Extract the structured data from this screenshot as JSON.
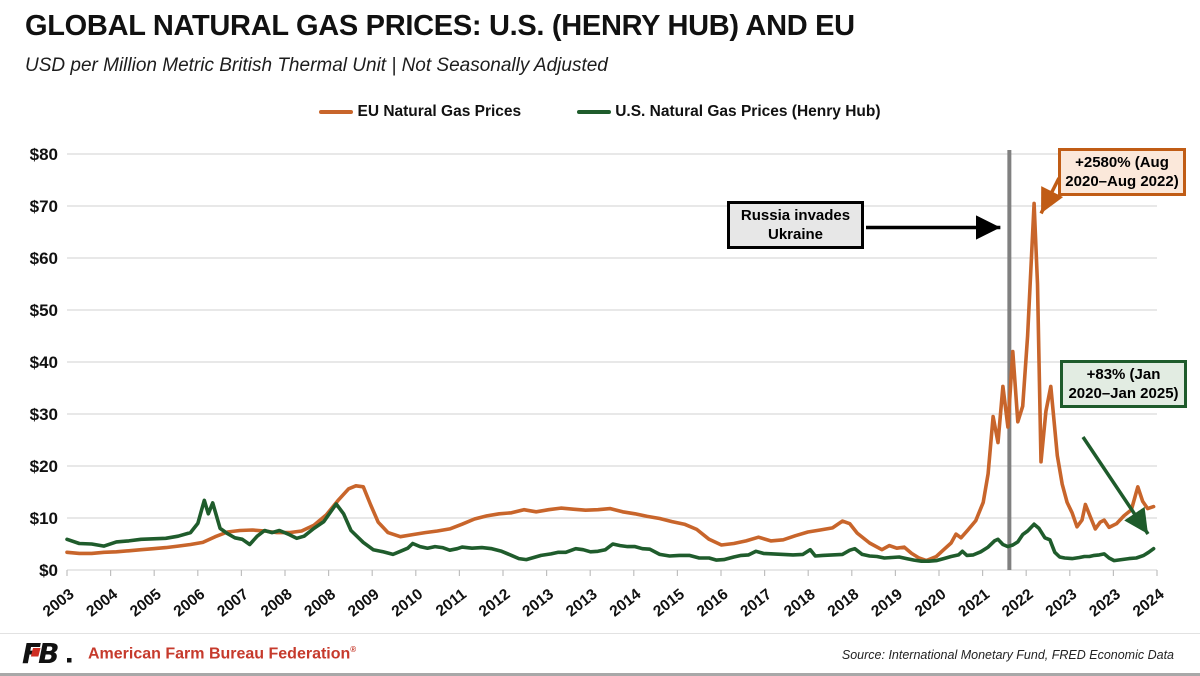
{
  "chart_data": {
    "type": "line",
    "title": "GLOBAL NATURAL GAS PRICES: U.S. (HENRY HUB) AND EU",
    "subtitle": "USD per Million Metric British Thermal Unit | Not Seasonally Adjusted",
    "ylabel": "",
    "xlabel": "",
    "ylim": [
      0,
      80
    ],
    "grid": true,
    "legend_position": "top",
    "y_axis": {
      "tick_labels": [
        "$0",
        "$10",
        "$20",
        "$30",
        "$40",
        "$50",
        "$60",
        "$70",
        "$80"
      ],
      "min": 0,
      "max": 80,
      "step": 10
    },
    "x_axis": {
      "tick_labels": [
        "2003",
        "2004",
        "2005",
        "2006",
        "2007",
        "2008",
        "2008",
        "2009",
        "2010",
        "2011",
        "2012",
        "2013",
        "2013",
        "2014",
        "2015",
        "2016",
        "2017",
        "2018",
        "2018",
        "2019",
        "2020",
        "2021",
        "2022",
        "2023",
        "2023",
        "2024"
      ]
    },
    "event_line": {
      "year": 2022.08,
      "color": "#808080",
      "meaning": "Russia invades Ukraine"
    },
    "series": [
      {
        "name": "EU Natural Gas Prices",
        "color": "#C8652B",
        "points": [
          [
            2003.0,
            3.4
          ],
          [
            2003.25,
            3.2
          ],
          [
            2003.5,
            3.2
          ],
          [
            2003.75,
            3.4
          ],
          [
            2004.0,
            3.5
          ],
          [
            2004.25,
            3.7
          ],
          [
            2004.5,
            3.9
          ],
          [
            2004.75,
            4.1
          ],
          [
            2005.0,
            4.3
          ],
          [
            2005.25,
            4.6
          ],
          [
            2005.5,
            4.9
          ],
          [
            2005.75,
            5.3
          ],
          [
            2006.0,
            6.4
          ],
          [
            2006.25,
            7.3
          ],
          [
            2006.5,
            7.6
          ],
          [
            2006.75,
            7.7
          ],
          [
            2007.0,
            7.5
          ],
          [
            2007.25,
            7.2
          ],
          [
            2007.5,
            7.2
          ],
          [
            2007.75,
            7.5
          ],
          [
            2008.0,
            8.6
          ],
          [
            2008.25,
            10.6
          ],
          [
            2008.5,
            13.5
          ],
          [
            2008.7,
            15.6
          ],
          [
            2008.85,
            16.2
          ],
          [
            2009.0,
            16.0
          ],
          [
            2009.15,
            12.5
          ],
          [
            2009.3,
            9.2
          ],
          [
            2009.5,
            7.2
          ],
          [
            2009.75,
            6.4
          ],
          [
            2010.0,
            6.8
          ],
          [
            2010.25,
            7.2
          ],
          [
            2010.5,
            7.5
          ],
          [
            2010.75,
            7.9
          ],
          [
            2011.0,
            8.8
          ],
          [
            2011.25,
            9.8
          ],
          [
            2011.5,
            10.4
          ],
          [
            2011.75,
            10.8
          ],
          [
            2012.0,
            11.0
          ],
          [
            2012.25,
            11.6
          ],
          [
            2012.5,
            11.2
          ],
          [
            2012.75,
            11.6
          ],
          [
            2013.0,
            11.9
          ],
          [
            2013.25,
            11.7
          ],
          [
            2013.5,
            11.5
          ],
          [
            2013.75,
            11.6
          ],
          [
            2014.0,
            11.8
          ],
          [
            2014.25,
            11.2
          ],
          [
            2014.5,
            10.8
          ],
          [
            2014.75,
            10.3
          ],
          [
            2015.0,
            9.9
          ],
          [
            2015.25,
            9.3
          ],
          [
            2015.5,
            8.8
          ],
          [
            2015.75,
            7.8
          ],
          [
            2016.0,
            5.9
          ],
          [
            2016.25,
            4.8
          ],
          [
            2016.5,
            5.1
          ],
          [
            2016.75,
            5.6
          ],
          [
            2017.0,
            6.3
          ],
          [
            2017.25,
            5.6
          ],
          [
            2017.5,
            5.8
          ],
          [
            2017.75,
            6.6
          ],
          [
            2018.0,
            7.3
          ],
          [
            2018.25,
            7.7
          ],
          [
            2018.5,
            8.1
          ],
          [
            2018.7,
            9.4
          ],
          [
            2018.85,
            8.9
          ],
          [
            2019.0,
            7.1
          ],
          [
            2019.25,
            5.2
          ],
          [
            2019.5,
            3.9
          ],
          [
            2019.65,
            4.7
          ],
          [
            2019.8,
            4.2
          ],
          [
            2019.95,
            4.4
          ],
          [
            2020.1,
            3.2
          ],
          [
            2020.25,
            2.3
          ],
          [
            2020.4,
            1.8
          ],
          [
            2020.6,
            2.6
          ],
          [
            2020.75,
            3.9
          ],
          [
            2020.9,
            5.2
          ],
          [
            2021.0,
            6.9
          ],
          [
            2021.1,
            6.2
          ],
          [
            2021.25,
            7.8
          ],
          [
            2021.4,
            9.5
          ],
          [
            2021.55,
            13.0
          ],
          [
            2021.65,
            18.5
          ],
          [
            2021.75,
            29.5
          ],
          [
            2021.85,
            24.5
          ],
          [
            2021.95,
            35.3
          ],
          [
            2022.05,
            27.5
          ],
          [
            2022.15,
            42.0
          ],
          [
            2022.25,
            28.5
          ],
          [
            2022.35,
            31.5
          ],
          [
            2022.45,
            45.0
          ],
          [
            2022.58,
            70.5
          ],
          [
            2022.65,
            55.0
          ],
          [
            2022.72,
            20.8
          ],
          [
            2022.82,
            30.5
          ],
          [
            2022.92,
            35.3
          ],
          [
            2023.05,
            22.0
          ],
          [
            2023.15,
            16.5
          ],
          [
            2023.25,
            13.0
          ],
          [
            2023.35,
            11.0
          ],
          [
            2023.45,
            8.3
          ],
          [
            2023.55,
            9.6
          ],
          [
            2023.62,
            12.6
          ],
          [
            2023.72,
            10.2
          ],
          [
            2023.82,
            7.9
          ],
          [
            2023.92,
            9.2
          ],
          [
            2024.0,
            9.6
          ],
          [
            2024.1,
            8.2
          ],
          [
            2024.25,
            8.9
          ],
          [
            2024.4,
            10.4
          ],
          [
            2024.55,
            11.6
          ],
          [
            2024.68,
            16.0
          ],
          [
            2024.78,
            13.2
          ],
          [
            2024.88,
            11.8
          ],
          [
            2025.0,
            12.2
          ]
        ]
      },
      {
        "name": "U.S. Natural Gas Prices (Henry Hub)",
        "color": "#1F5C2C",
        "points": [
          [
            2003.0,
            5.9
          ],
          [
            2003.25,
            5.1
          ],
          [
            2003.5,
            5.0
          ],
          [
            2003.75,
            4.6
          ],
          [
            2004.0,
            5.4
          ],
          [
            2004.25,
            5.6
          ],
          [
            2004.5,
            5.9
          ],
          [
            2004.75,
            6.0
          ],
          [
            2005.0,
            6.1
          ],
          [
            2005.25,
            6.5
          ],
          [
            2005.5,
            7.2
          ],
          [
            2005.65,
            9.0
          ],
          [
            2005.78,
            13.4
          ],
          [
            2005.86,
            10.8
          ],
          [
            2005.95,
            12.9
          ],
          [
            2006.1,
            8.0
          ],
          [
            2006.25,
            7.0
          ],
          [
            2006.4,
            6.2
          ],
          [
            2006.55,
            5.9
          ],
          [
            2006.7,
            4.9
          ],
          [
            2006.85,
            6.5
          ],
          [
            2007.0,
            7.6
          ],
          [
            2007.15,
            7.2
          ],
          [
            2007.3,
            7.6
          ],
          [
            2007.5,
            6.8
          ],
          [
            2007.65,
            6.1
          ],
          [
            2007.8,
            6.5
          ],
          [
            2008.0,
            8.0
          ],
          [
            2008.2,
            9.3
          ],
          [
            2008.45,
            12.7
          ],
          [
            2008.6,
            10.8
          ],
          [
            2008.75,
            7.6
          ],
          [
            2009.0,
            5.3
          ],
          [
            2009.2,
            3.9
          ],
          [
            2009.4,
            3.5
          ],
          [
            2009.6,
            3.0
          ],
          [
            2009.75,
            3.6
          ],
          [
            2009.9,
            4.2
          ],
          [
            2010.0,
            5.1
          ],
          [
            2010.15,
            4.5
          ],
          [
            2010.3,
            4.2
          ],
          [
            2010.45,
            4.5
          ],
          [
            2010.6,
            4.3
          ],
          [
            2010.75,
            3.8
          ],
          [
            2010.9,
            4.1
          ],
          [
            2011.0,
            4.4
          ],
          [
            2011.2,
            4.2
          ],
          [
            2011.4,
            4.3
          ],
          [
            2011.6,
            4.1
          ],
          [
            2011.8,
            3.6
          ],
          [
            2012.0,
            2.8
          ],
          [
            2012.15,
            2.2
          ],
          [
            2012.3,
            2.0
          ],
          [
            2012.45,
            2.4
          ],
          [
            2012.6,
            2.8
          ],
          [
            2012.8,
            3.1
          ],
          [
            2012.95,
            3.4
          ],
          [
            2013.1,
            3.4
          ],
          [
            2013.3,
            4.1
          ],
          [
            2013.45,
            3.9
          ],
          [
            2013.6,
            3.5
          ],
          [
            2013.75,
            3.6
          ],
          [
            2013.9,
            3.9
          ],
          [
            2014.05,
            5.0
          ],
          [
            2014.2,
            4.7
          ],
          [
            2014.35,
            4.5
          ],
          [
            2014.5,
            4.5
          ],
          [
            2014.65,
            4.1
          ],
          [
            2014.8,
            4.0
          ],
          [
            2015.0,
            3.0
          ],
          [
            2015.2,
            2.7
          ],
          [
            2015.4,
            2.8
          ],
          [
            2015.6,
            2.8
          ],
          [
            2015.8,
            2.3
          ],
          [
            2016.0,
            2.3
          ],
          [
            2016.15,
            1.9
          ],
          [
            2016.3,
            2.0
          ],
          [
            2016.5,
            2.5
          ],
          [
            2016.65,
            2.8
          ],
          [
            2016.8,
            2.9
          ],
          [
            2016.95,
            3.6
          ],
          [
            2017.1,
            3.2
          ],
          [
            2017.3,
            3.1
          ],
          [
            2017.5,
            3.0
          ],
          [
            2017.7,
            2.9
          ],
          [
            2017.9,
            3.0
          ],
          [
            2018.05,
            3.9
          ],
          [
            2018.15,
            2.7
          ],
          [
            2018.3,
            2.8
          ],
          [
            2018.5,
            2.9
          ],
          [
            2018.7,
            3.0
          ],
          [
            2018.85,
            3.8
          ],
          [
            2018.95,
            4.1
          ],
          [
            2019.1,
            3.0
          ],
          [
            2019.25,
            2.7
          ],
          [
            2019.4,
            2.6
          ],
          [
            2019.55,
            2.3
          ],
          [
            2019.7,
            2.4
          ],
          [
            2019.85,
            2.5
          ],
          [
            2020.0,
            2.2
          ],
          [
            2020.15,
            1.9
          ],
          [
            2020.3,
            1.7
          ],
          [
            2020.45,
            1.7
          ],
          [
            2020.6,
            1.8
          ],
          [
            2020.75,
            2.2
          ],
          [
            2020.9,
            2.6
          ],
          [
            2021.05,
            2.9
          ],
          [
            2021.13,
            3.6
          ],
          [
            2021.22,
            2.8
          ],
          [
            2021.35,
            2.9
          ],
          [
            2021.5,
            3.5
          ],
          [
            2021.65,
            4.4
          ],
          [
            2021.78,
            5.6
          ],
          [
            2021.85,
            5.9
          ],
          [
            2021.95,
            4.9
          ],
          [
            2022.05,
            4.5
          ],
          [
            2022.15,
            4.8
          ],
          [
            2022.25,
            5.4
          ],
          [
            2022.35,
            6.8
          ],
          [
            2022.45,
            7.5
          ],
          [
            2022.58,
            8.8
          ],
          [
            2022.68,
            8.0
          ],
          [
            2022.8,
            6.2
          ],
          [
            2022.9,
            5.8
          ],
          [
            2023.0,
            3.4
          ],
          [
            2023.1,
            2.5
          ],
          [
            2023.2,
            2.3
          ],
          [
            2023.35,
            2.2
          ],
          [
            2023.5,
            2.4
          ],
          [
            2023.6,
            2.6
          ],
          [
            2023.7,
            2.6
          ],
          [
            2023.8,
            2.8
          ],
          [
            2023.9,
            2.9
          ],
          [
            2024.0,
            3.1
          ],
          [
            2024.1,
            2.3
          ],
          [
            2024.2,
            1.8
          ],
          [
            2024.35,
            2.0
          ],
          [
            2024.5,
            2.2
          ],
          [
            2024.65,
            2.3
          ],
          [
            2024.8,
            2.8
          ],
          [
            2024.9,
            3.4
          ],
          [
            2025.0,
            4.1
          ]
        ]
      }
    ],
    "annotations": [
      {
        "text": "Russia invades Ukraine",
        "bg": "#E7E7E7",
        "border": "#000000"
      },
      {
        "text": "+2580% (Aug 2020–Aug 2022)",
        "bg": "#FBE8DA",
        "border": "#C05C15"
      },
      {
        "text": "+83% (Jan 2020–Jan 2025)",
        "bg": "#E2ECE2",
        "border": "#1E5B2B"
      }
    ],
    "colors": {
      "grid": "#D9D9D9",
      "tick": "#BFBFBF",
      "event_line": "#808080"
    }
  },
  "footer": {
    "logo_text": "FB",
    "org": "American Farm Bureau Federation",
    "trademark": "®",
    "org_color": "#C63A2C",
    "source": "Source: International Monetary Fund, FRED Economic Data"
  }
}
